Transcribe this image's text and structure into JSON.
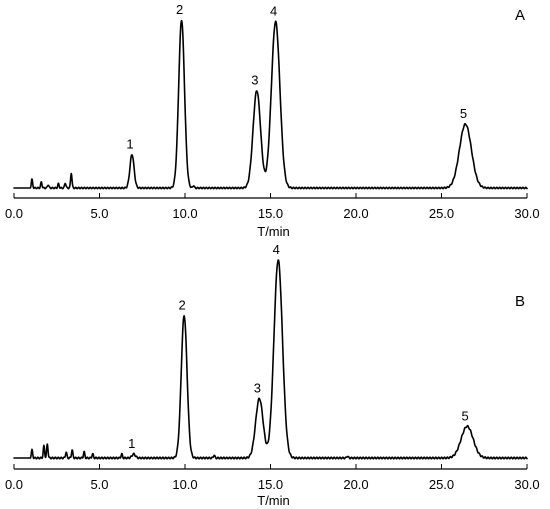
{
  "chart_data": [
    {
      "type": "line",
      "panel_label": "A",
      "xlabel": "T/min",
      "ylabel": "",
      "xlim": [
        0,
        30
      ],
      "x_ticks": [
        "0.0",
        "5.0",
        "10.0",
        "15.0",
        "20.0",
        "25.0",
        "30.0"
      ],
      "y_axis_shown": false,
      "grid": false,
      "baseline_noise": [
        {
          "x": 1.05,
          "h": 0.05
        },
        {
          "x": 1.6,
          "h": 0.035
        },
        {
          "x": 2.0,
          "h": 0.02
        },
        {
          "x": 2.6,
          "h": 0.025
        },
        {
          "x": 3.0,
          "h": 0.03
        },
        {
          "x": 3.35,
          "h": 0.09
        },
        {
          "x": 10.5,
          "h": 0.015
        }
      ],
      "peaks": [
        {
          "label": "1",
          "x": 6.9,
          "height": 0.2,
          "width": 0.12
        },
        {
          "label": "2",
          "x": 9.8,
          "height": 1.0,
          "width": 0.17
        },
        {
          "label": "3",
          "x": 14.2,
          "height": 0.58,
          "width": 0.22
        },
        {
          "label": "4",
          "x": 15.3,
          "height": 0.99,
          "width": 0.25
        },
        {
          "label": "5",
          "x": 26.4,
          "height": 0.38,
          "width": 0.35
        }
      ]
    },
    {
      "type": "line",
      "panel_label": "B",
      "xlabel": "T/min",
      "ylabel": "",
      "xlim": [
        0,
        30
      ],
      "x_ticks": [
        "0.0",
        "5.0",
        "10.0",
        "15.0",
        "20.0",
        "25.0",
        "30.0"
      ],
      "y_axis_shown": false,
      "grid": false,
      "baseline_noise": [
        {
          "x": 1.05,
          "h": 0.04
        },
        {
          "x": 1.75,
          "h": 0.06
        },
        {
          "x": 1.95,
          "h": 0.07
        },
        {
          "x": 3.05,
          "h": 0.03
        },
        {
          "x": 3.4,
          "h": 0.04
        },
        {
          "x": 4.1,
          "h": 0.03
        },
        {
          "x": 4.6,
          "h": 0.02
        },
        {
          "x": 6.3,
          "h": 0.02
        },
        {
          "x": 11.7,
          "h": 0.015
        },
        {
          "x": 19.5,
          "h": 0.01
        }
      ],
      "peaks": [
        {
          "label": "1",
          "x": 7.0,
          "height": 0.02,
          "width": 0.1
        },
        {
          "label": "2",
          "x": 9.95,
          "height": 0.72,
          "width": 0.17
        },
        {
          "label": "3",
          "x": 14.35,
          "height": 0.3,
          "width": 0.22
        },
        {
          "label": "4",
          "x": 15.45,
          "height": 1.0,
          "width": 0.25
        },
        {
          "label": "5",
          "x": 26.5,
          "height": 0.16,
          "width": 0.35
        }
      ]
    }
  ]
}
